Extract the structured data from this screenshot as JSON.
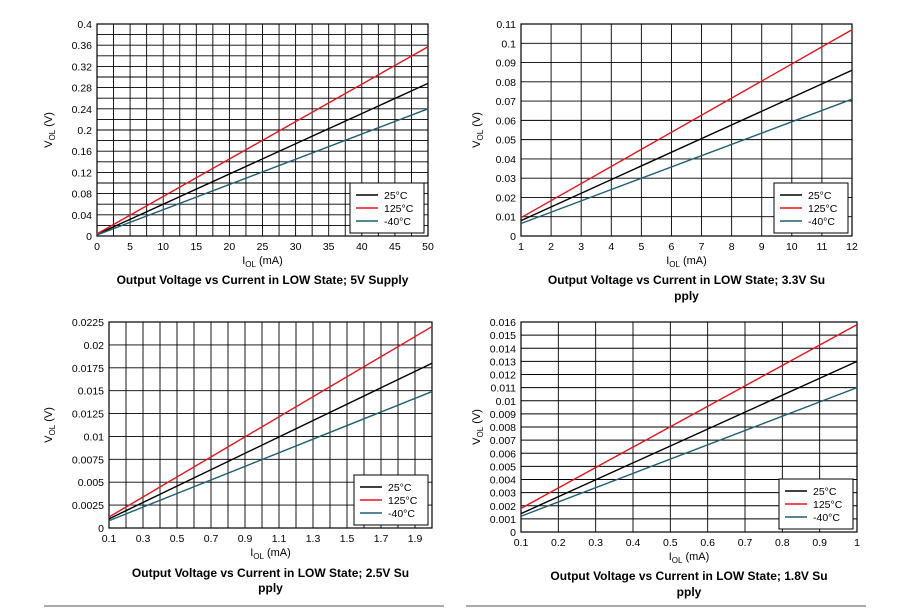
{
  "chart_data": [
    {
      "type": "line",
      "title": "Output Voltage vs Current in LOW State; 5V Supply",
      "xlabel": "IOL (mA)",
      "ylabel": "VOL (V)",
      "xlim": [
        0,
        50
      ],
      "ylim": [
        0,
        0.4
      ],
      "xticks": [
        "0",
        "5",
        "10",
        "15",
        "20",
        "25",
        "30",
        "35",
        "40",
        "45",
        "50"
      ],
      "yticks": [
        "0",
        "0.04",
        "0.08",
        "0.12",
        "0.16",
        "0.2",
        "0.24",
        "0.28",
        "0.32",
        "0.36",
        "0.4"
      ],
      "grid": true,
      "legend": "bottom-right",
      "series": [
        {
          "name": "25°C",
          "color": "#000000",
          "x": [
            0,
            50
          ],
          "y": [
            0.003,
            0.288
          ]
        },
        {
          "name": "125°C",
          "color": "#e8141c",
          "x": [
            0,
            50
          ],
          "y": [
            0.004,
            0.357
          ]
        },
        {
          "name": "-40°C",
          "color": "#1f5f73",
          "x": [
            0,
            50
          ],
          "y": [
            0.002,
            0.24
          ]
        }
      ]
    },
    {
      "type": "line",
      "title": "Output Voltage vs Current in LOW State; 3.3V Supply",
      "xlabel": "IOL (mA)",
      "ylabel": "VOL (V)",
      "xlim": [
        1,
        12
      ],
      "ylim": [
        0,
        0.11
      ],
      "xticks": [
        "1",
        "2",
        "3",
        "4",
        "5",
        "6",
        "7",
        "8",
        "9",
        "10",
        "11",
        "12"
      ],
      "yticks": [
        "0",
        "0.01",
        "0.02",
        "0.03",
        "0.04",
        "0.05",
        "0.06",
        "0.07",
        "0.08",
        "0.09",
        "0.1",
        "0.11"
      ],
      "grid": true,
      "legend": "bottom-right",
      "series": [
        {
          "name": "25°C",
          "color": "#000000",
          "x": [
            1,
            12
          ],
          "y": [
            0.008,
            0.086
          ]
        },
        {
          "name": "125°C",
          "color": "#e8141c",
          "x": [
            1,
            12
          ],
          "y": [
            0.0095,
            0.107
          ]
        },
        {
          "name": "-40°C",
          "color": "#1f5f73",
          "x": [
            1,
            12
          ],
          "y": [
            0.0065,
            0.071
          ]
        }
      ]
    },
    {
      "type": "line",
      "title": "Output Voltage vs Current in LOW State; 2.5V Supply",
      "xlabel": "IOL (mA)",
      "ylabel": "VOL (V)",
      "xlim": [
        0.1,
        2.0
      ],
      "ylim": [
        0,
        0.0225
      ],
      "xticks": [
        "0.1",
        "0.3",
        "0.5",
        "0.7",
        "0.9",
        "1.1",
        "1.3",
        "1.5",
        "1.7",
        "1.9"
      ],
      "yticks": [
        "0",
        "0.0025",
        "0.005",
        "0.0075",
        "0.01",
        "0.0125",
        "0.015",
        "0.0175",
        "0.02",
        "0.0225"
      ],
      "grid": true,
      "legend": "bottom-right",
      "series": [
        {
          "name": "25°C",
          "color": "#000000",
          "x": [
            0.1,
            2.0
          ],
          "y": [
            0.001,
            0.018
          ]
        },
        {
          "name": "125°C",
          "color": "#e8141c",
          "x": [
            0.1,
            2.0
          ],
          "y": [
            0.0012,
            0.022
          ]
        },
        {
          "name": "-40°C",
          "color": "#1f5f73",
          "x": [
            0.1,
            2.0
          ],
          "y": [
            0.0008,
            0.0149
          ]
        }
      ]
    },
    {
      "type": "line",
      "title": "Output Voltage vs Current in LOW State; 1.8V Supply",
      "xlabel": "IOL (mA)",
      "ylabel": "VOL (V)",
      "xlim": [
        0.1,
        1.0
      ],
      "ylim": [
        0,
        0.016
      ],
      "xticks": [
        "0.1",
        "0.2",
        "0.3",
        "0.4",
        "0.5",
        "0.6",
        "0.7",
        "0.8",
        "0.9",
        "1"
      ],
      "yticks": [
        "0",
        "0.001",
        "0.002",
        "0.003",
        "0.004",
        "0.005",
        "0.006",
        "0.007",
        "0.008",
        "0.009",
        "0.01",
        "0.011",
        "0.012",
        "0.013",
        "0.014",
        "0.015",
        "0.016"
      ],
      "grid": true,
      "legend": "bottom-right",
      "series": [
        {
          "name": "25°C",
          "color": "#000000",
          "x": [
            0.1,
            1.0
          ],
          "y": [
            0.0014,
            0.013
          ]
        },
        {
          "name": "125°C",
          "color": "#e8141c",
          "x": [
            0.1,
            1.0
          ],
          "y": [
            0.0018,
            0.0158
          ]
        },
        {
          "name": "-40°C",
          "color": "#1f5f73",
          "x": [
            0.1,
            1.0
          ],
          "y": [
            0.0012,
            0.011
          ]
        }
      ]
    }
  ]
}
